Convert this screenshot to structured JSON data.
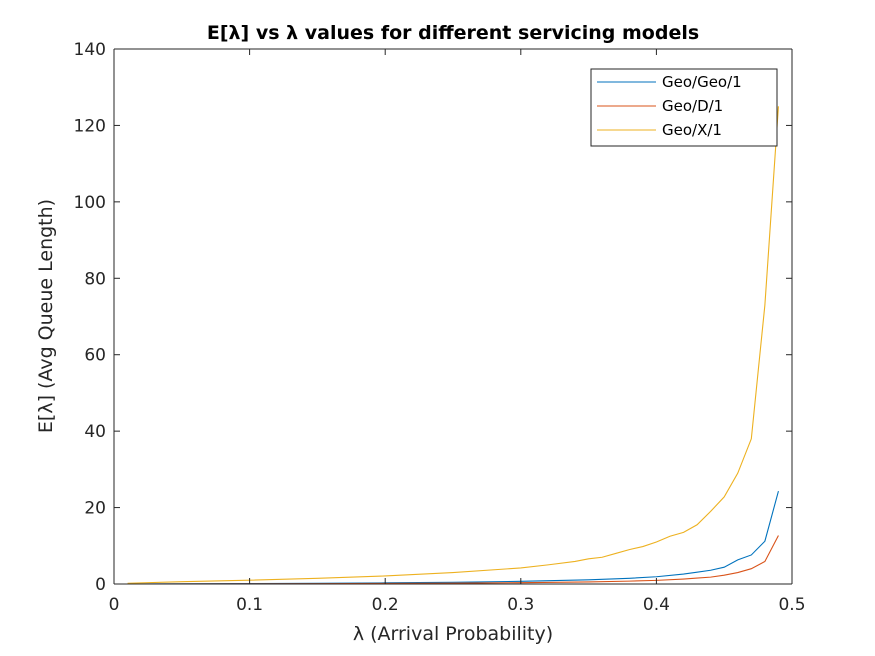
{
  "chart_data": {
    "type": "line",
    "title": "E[λ] vs λ values for different servicing models",
    "xlabel": "λ (Arrival Probability)",
    "ylabel": "E[λ] (Avg Queue Length)",
    "xlim": [
      0,
      0.5
    ],
    "ylim": [
      0,
      140
    ],
    "xticks": [
      0,
      0.1,
      0.2,
      0.3,
      0.4,
      0.5
    ],
    "xtick_labels": [
      "0",
      "0.1",
      "0.2",
      "0.3",
      "0.4",
      "0.5"
    ],
    "yticks": [
      0,
      20,
      40,
      60,
      80,
      100,
      120,
      140
    ],
    "ytick_labels": [
      "0",
      "20",
      "40",
      "60",
      "80",
      "100",
      "120",
      "140"
    ],
    "grid": false,
    "legend_position": "top-right",
    "series": [
      {
        "name": "Geo/Geo/1",
        "color": "#0072BD",
        "x": [
          0.01,
          0.05,
          0.1,
          0.15,
          0.2,
          0.25,
          0.3,
          0.35,
          0.38,
          0.4,
          0.42,
          0.43,
          0.44,
          0.45,
          0.46,
          0.47,
          0.48,
          0.49
        ],
        "y": [
          0.01,
          0.05,
          0.11,
          0.2,
          0.3,
          0.45,
          0.7,
          1.1,
          1.5,
          1.9,
          2.6,
          3.1,
          3.6,
          4.4,
          6.3,
          7.6,
          11.2,
          24.3
        ]
      },
      {
        "name": "Geo/D/1",
        "color": "#D95319",
        "x": [
          0.01,
          0.05,
          0.1,
          0.15,
          0.2,
          0.25,
          0.3,
          0.35,
          0.38,
          0.4,
          0.42,
          0.43,
          0.44,
          0.45,
          0.46,
          0.47,
          0.48,
          0.49
        ],
        "y": [
          0.0,
          0.03,
          0.06,
          0.1,
          0.15,
          0.22,
          0.35,
          0.55,
          0.75,
          0.95,
          1.3,
          1.55,
          1.8,
          2.3,
          3.0,
          4.0,
          5.9,
          12.7
        ]
      },
      {
        "name": "Geo/X/1",
        "color": "#EDB120",
        "x": [
          0.01,
          0.05,
          0.1,
          0.15,
          0.2,
          0.25,
          0.3,
          0.32,
          0.34,
          0.35,
          0.36,
          0.37,
          0.38,
          0.39,
          0.4,
          0.41,
          0.42,
          0.43,
          0.44,
          0.45,
          0.46,
          0.47,
          0.48,
          0.49
        ],
        "y": [
          0.2,
          0.6,
          1.0,
          1.5,
          2.1,
          3.0,
          4.2,
          5.0,
          5.9,
          6.6,
          7.0,
          8.0,
          9.0,
          9.8,
          11.0,
          12.5,
          13.5,
          15.5,
          19.0,
          22.8,
          29.0,
          38.0,
          73.0,
          125.0
        ]
      }
    ]
  }
}
